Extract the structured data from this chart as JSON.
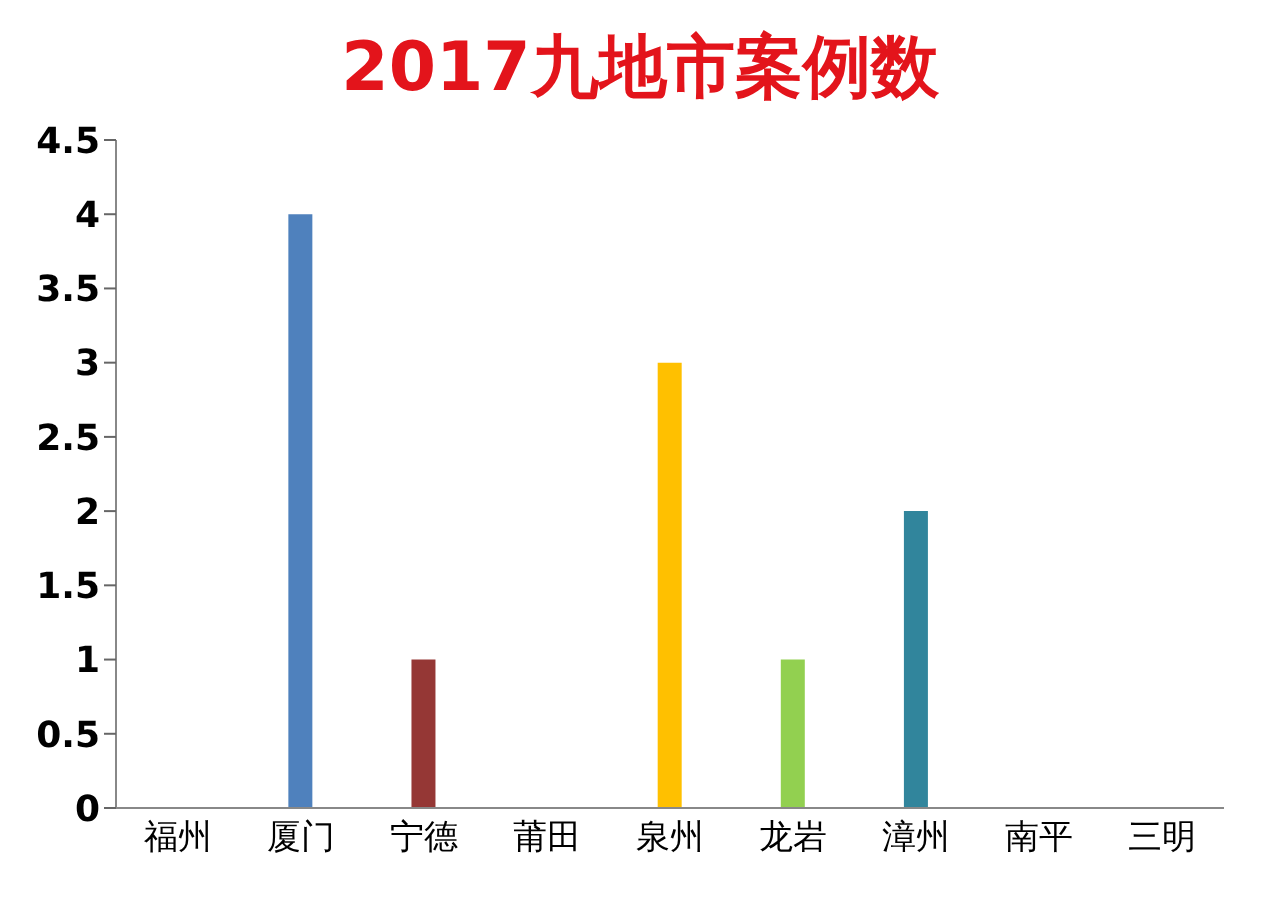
{
  "chart_data": {
    "type": "bar",
    "title": "2017九地市案例数",
    "categories": [
      "福州",
      "厦门",
      "宁德",
      "莆田",
      "泉州",
      "龙岩",
      "漳州",
      "南平",
      "三明"
    ],
    "values": [
      0,
      4,
      1,
      0,
      3,
      1,
      2,
      0,
      0
    ],
    "colors": [
      "#4f81bd",
      "#4f81bd",
      "#953735",
      "#4f81bd",
      "#ffc000",
      "#92d050",
      "#31859c",
      "#4f81bd",
      "#4f81bd"
    ],
    "ylim": [
      0,
      4.5
    ],
    "yticks": [
      0,
      0.5,
      1,
      1.5,
      2,
      2.5,
      3,
      3.5,
      4,
      4.5
    ],
    "grid": false
  }
}
